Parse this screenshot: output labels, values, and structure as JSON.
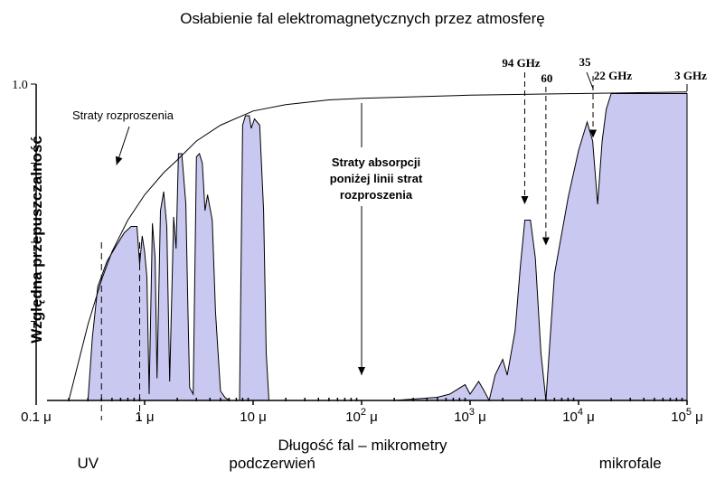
{
  "chart_data": {
    "type": "area",
    "title": "Osłabienie fal elektromagnetycznych przez atmosferę",
    "xlabel": "Długość fal – mikrometry",
    "ylabel": "Względna przepuszczalność",
    "x_scale": "log",
    "x_unit": "μ",
    "xlim_um": [
      0.1,
      100000
    ],
    "ylim": [
      0,
      1.0
    ],
    "x_ticks": [
      {
        "value": 0.1,
        "label": "0.1 μ",
        "base": "",
        "exp": ""
      },
      {
        "value": 1,
        "label": "1 μ",
        "base": "",
        "exp": ""
      },
      {
        "value": 10,
        "label": "10 μ",
        "base": "",
        "exp": ""
      },
      {
        "value": 100,
        "label": "",
        "base": "10",
        "exp": "2"
      },
      {
        "value": 1000,
        "label": "",
        "base": "10",
        "exp": "3"
      },
      {
        "value": 10000,
        "label": "",
        "base": "10",
        "exp": "4"
      },
      {
        "value": 100000,
        "label": "",
        "base": "10",
        "exp": "5"
      }
    ],
    "y_ticks": [
      {
        "value": 1.0,
        "label": "1.0"
      }
    ],
    "regions": [
      {
        "label": "UV",
        "x_um": 0.3
      },
      {
        "label": "podczerwień",
        "x_um": 15
      },
      {
        "label": "mikrofale",
        "x_um": 30000
      }
    ],
    "scattering_curve": [
      [
        0.2,
        0.0
      ],
      [
        0.3,
        0.24
      ],
      [
        0.4,
        0.38
      ],
      [
        0.5,
        0.47
      ],
      [
        0.7,
        0.57
      ],
      [
        1,
        0.65
      ],
      [
        1.5,
        0.72
      ],
      [
        2,
        0.76
      ],
      [
        3,
        0.82
      ],
      [
        5,
        0.87
      ],
      [
        10,
        0.915
      ],
      [
        20,
        0.935
      ],
      [
        50,
        0.95
      ],
      [
        100,
        0.955
      ],
      [
        1000,
        0.965
      ],
      [
        10000,
        0.97
      ],
      [
        100000,
        0.975
      ]
    ],
    "transmission": [
      [
        0.3,
        0.0
      ],
      [
        0.33,
        0.2
      ],
      [
        0.37,
        0.36
      ],
      [
        0.45,
        0.44
      ],
      [
        0.55,
        0.49
      ],
      [
        0.65,
        0.53
      ],
      [
        0.75,
        0.55
      ],
      [
        0.85,
        0.55
      ],
      [
        0.9,
        0.43
      ],
      [
        0.95,
        0.52
      ],
      [
        1.0,
        0.47
      ],
      [
        1.05,
        0.39
      ],
      [
        1.1,
        0.02
      ],
      [
        1.18,
        0.56
      ],
      [
        1.25,
        0.45
      ],
      [
        1.3,
        0.07
      ],
      [
        1.4,
        0.6
      ],
      [
        1.5,
        0.66
      ],
      [
        1.6,
        0.55
      ],
      [
        1.7,
        0.06
      ],
      [
        1.85,
        0.58
      ],
      [
        1.95,
        0.48
      ],
      [
        2.05,
        0.78
      ],
      [
        2.2,
        0.78
      ],
      [
        2.4,
        0.62
      ],
      [
        2.5,
        0.3
      ],
      [
        2.6,
        0.04
      ],
      [
        2.8,
        0.02
      ],
      [
        3.0,
        0.77
      ],
      [
        3.2,
        0.78
      ],
      [
        3.4,
        0.75
      ],
      [
        3.6,
        0.6
      ],
      [
        3.8,
        0.65
      ],
      [
        4.2,
        0.57
      ],
      [
        4.5,
        0.28
      ],
      [
        5.0,
        0.03
      ],
      [
        5.5,
        0.01
      ],
      [
        6.0,
        0.0
      ],
      [
        7.5,
        0.0
      ],
      [
        8.0,
        0.87
      ],
      [
        8.5,
        0.9
      ],
      [
        9.2,
        0.9
      ],
      [
        9.6,
        0.86
      ],
      [
        10.3,
        0.89
      ],
      [
        11.5,
        0.87
      ],
      [
        12.5,
        0.6
      ],
      [
        13.2,
        0.15
      ],
      [
        14,
        0.0
      ],
      [
        200,
        0.0
      ],
      [
        500,
        0.01
      ],
      [
        650,
        0.02
      ],
      [
        900,
        0.05
      ],
      [
        1000,
        0.02
      ],
      [
        1200,
        0.06
      ],
      [
        1350,
        0.03
      ],
      [
        1500,
        0.0
      ],
      [
        1700,
        0.08
      ],
      [
        2000,
        0.13
      ],
      [
        2200,
        0.08
      ],
      [
        2600,
        0.22
      ],
      [
        2900,
        0.42
      ],
      [
        3200,
        0.57
      ],
      [
        3600,
        0.57
      ],
      [
        4000,
        0.45
      ],
      [
        4500,
        0.15
      ],
      [
        5000,
        0.0
      ],
      [
        6000,
        0.4
      ],
      [
        8000,
        0.64
      ],
      [
        10000,
        0.79
      ],
      [
        12000,
        0.88
      ],
      [
        13500,
        0.82
      ],
      [
        15000,
        0.62
      ],
      [
        16500,
        0.82
      ],
      [
        18000,
        0.92
      ],
      [
        20000,
        0.97
      ],
      [
        100000,
        0.97
      ]
    ],
    "annotations": [
      {
        "text": "Straty rozproszenia",
        "x_um": 0.25,
        "y": 0.9,
        "arrow_to": [
          0.55,
          0.75
        ]
      },
      {
        "lines": [
          "Straty absorpcji",
          "poniżej linii strat",
          "rozproszenia"
        ],
        "x_um": 100,
        "y": 0.75,
        "arrow_from": [
          100,
          0.94
        ],
        "arrow_to": [
          100,
          0.08
        ]
      },
      {
        "text": "94 GHz",
        "freq_ghz": 94,
        "x_um": 3190,
        "arrow_y": 0.62
      },
      {
        "text": "60",
        "freq_ghz": 60,
        "x_um": 5000,
        "arrow_y": 0.49
      },
      {
        "text": "35",
        "freq_ghz": 35,
        "x_um": 14400,
        "arrow_y": 0.8
      },
      {
        "text": "22 GHz",
        "freq_ghz": 22,
        "x_um": 13600,
        "arrow_y": 0.83
      },
      {
        "text": "3 GHz",
        "freq_ghz": 3,
        "x_um": 100000
      }
    ],
    "colors": {
      "fill": "#c8c8f0",
      "stroke": "#000000"
    }
  }
}
